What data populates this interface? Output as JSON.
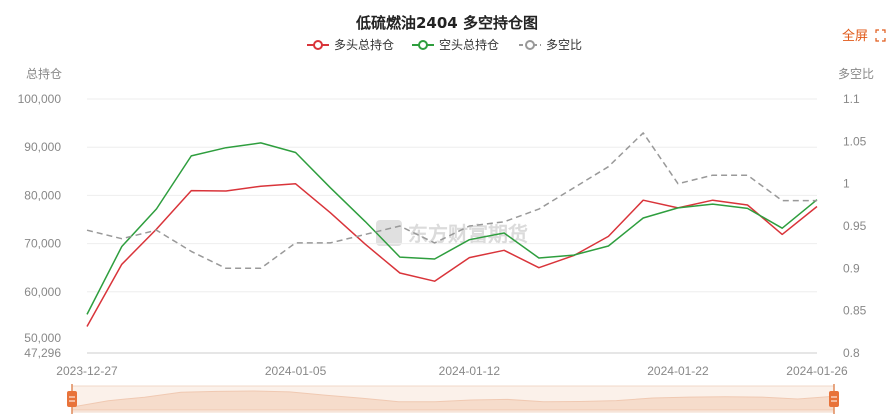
{
  "chart_data": {
    "type": "line",
    "title": "低硫燃油2404 多空持仓图",
    "legend_position": "top-center",
    "y_left_label": "总持仓",
    "y_right_label": "多空比",
    "x_tick_labels": [
      "2023-12-27",
      "2024-01-05",
      "2024-01-12",
      "2024-01-22",
      "2024-01-26"
    ],
    "x_tick_indices": [
      0,
      6,
      11,
      17,
      21
    ],
    "y_left_ticks": [
      "100,000",
      "90,000",
      "80,000",
      "70,000",
      "60,000",
      "50,000",
      "47,296"
    ],
    "y_left_tick_values": [
      100000,
      90000,
      80000,
      70000,
      60000,
      50000,
      47296
    ],
    "y_left_range": [
      47296,
      100000
    ],
    "y_right_ticks": [
      "1.1",
      "1.05",
      "1",
      "0.95",
      "0.9",
      "0.85",
      "0.8"
    ],
    "y_right_tick_values": [
      1.1,
      1.05,
      1.0,
      0.95,
      0.9,
      0.85,
      0.8
    ],
    "y_right_range": [
      0.8,
      1.1
    ],
    "grid": true,
    "series": [
      {
        "name": "多头总持仓",
        "axis": "left",
        "color": "#d9343a",
        "dashed": false,
        "values": [
          52800,
          65700,
          73000,
          81000,
          80900,
          81900,
          82400,
          76400,
          69900,
          63900,
          62200,
          67100,
          68600,
          65000,
          67500,
          71500,
          79000,
          77400,
          79000,
          78000,
          71900,
          77700
        ]
      },
      {
        "name": "空头总持仓",
        "axis": "left",
        "color": "#2e9e3e",
        "dashed": false,
        "values": [
          55300,
          69400,
          77200,
          88200,
          89900,
          90900,
          88900,
          81600,
          74600,
          67200,
          66800,
          70800,
          72200,
          67000,
          67600,
          69500,
          75300,
          77400,
          78200,
          77300,
          73200,
          79100
        ]
      },
      {
        "name": "多空比",
        "axis": "right",
        "color": "#999999",
        "dashed": true,
        "values": [
          0.945,
          0.935,
          0.945,
          0.92,
          0.9,
          0.9,
          0.93,
          0.93,
          0.94,
          0.95,
          0.93,
          0.95,
          0.955,
          0.97,
          0.995,
          1.02,
          1.06,
          1.0,
          1.01,
          1.01,
          0.98,
          0.98
        ]
      }
    ]
  },
  "ui": {
    "fullscreen_label": "全屏",
    "watermark_text": "东方财富期货"
  }
}
